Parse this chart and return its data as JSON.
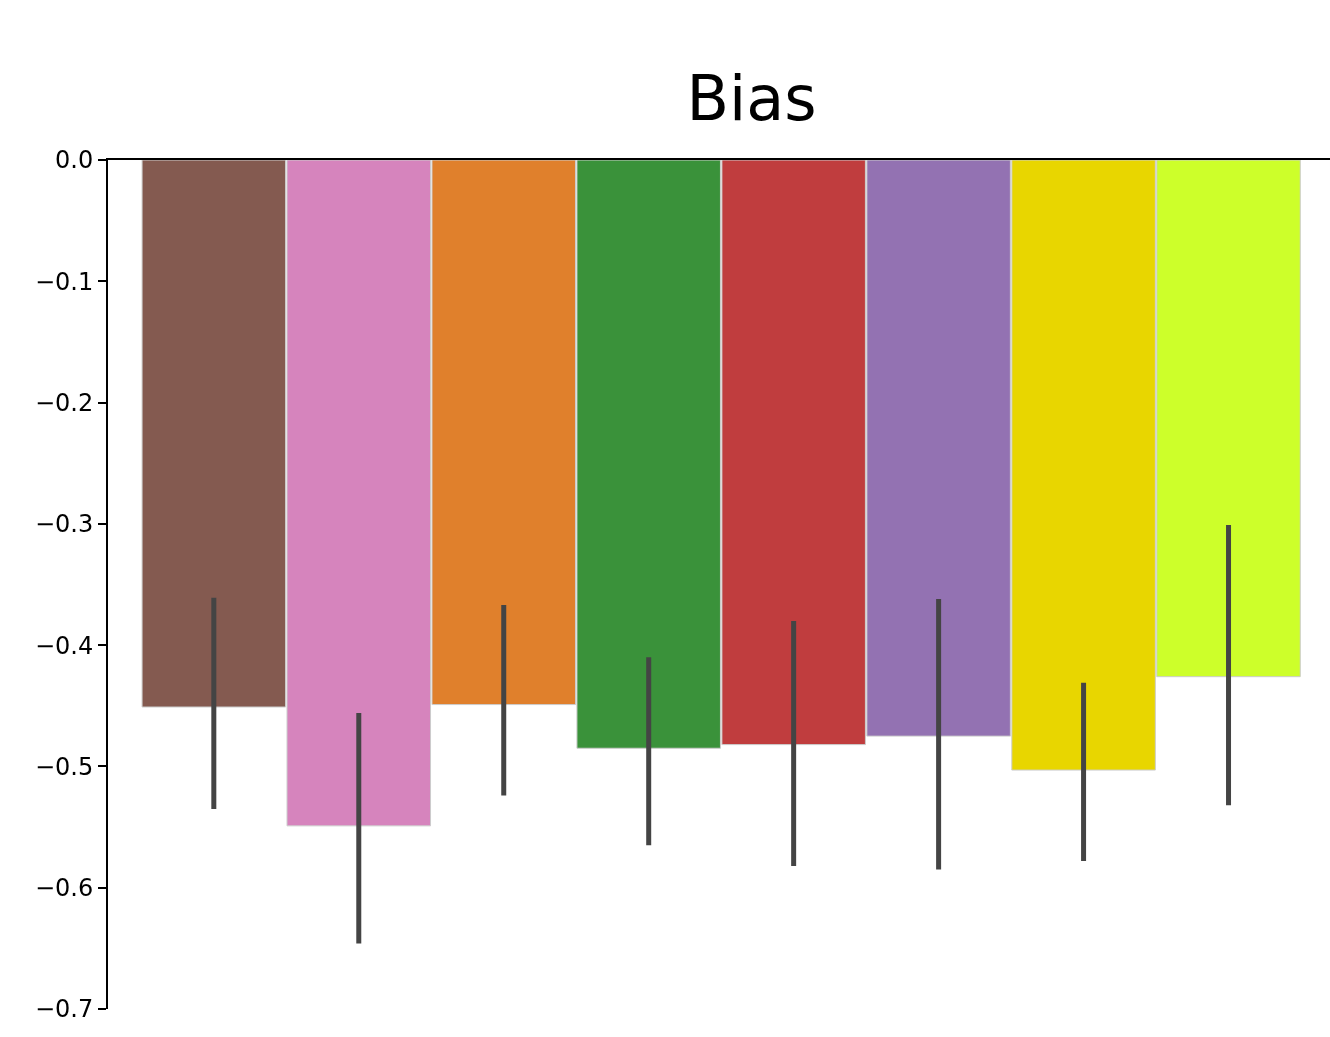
{
  "chart_data": {
    "type": "bar",
    "title": "Bias",
    "categories": [
      null,
      null,
      null,
      null,
      null,
      null,
      null,
      null
    ],
    "values": [
      -0.451,
      -0.549,
      -0.449,
      -0.485,
      -0.482,
      -0.475,
      -0.503,
      -0.426
    ],
    "colors": [
      "#845a50",
      "#d684bd",
      "#e0802c",
      "#3a923a",
      "#c03d3e",
      "#9372b2",
      "#e8d600",
      "#cdff2a"
    ],
    "errors": [
      [
        -0.535,
        -0.361
      ],
      [
        -0.646,
        -0.456
      ],
      [
        -0.524,
        -0.367
      ],
      [
        -0.565,
        -0.41
      ],
      [
        -0.582,
        -0.38
      ],
      [
        -0.585,
        -0.362
      ],
      [
        -0.578,
        -0.431
      ],
      [
        -0.532,
        -0.301
      ]
    ],
    "ylim": [
      -0.7,
      0.0
    ],
    "yticks": [
      {
        "value": 0.0,
        "label": "0.0"
      },
      {
        "value": -0.1,
        "label": "−0.1"
      },
      {
        "value": -0.2,
        "label": "−0.2"
      },
      {
        "value": -0.3,
        "label": "−0.3"
      },
      {
        "value": -0.4,
        "label": "−0.4"
      },
      {
        "value": -0.5,
        "label": "−0.5"
      },
      {
        "value": -0.6,
        "label": "−0.6"
      },
      {
        "value": -0.7,
        "label": "−0.7"
      }
    ],
    "tick_labels": "y"
  }
}
